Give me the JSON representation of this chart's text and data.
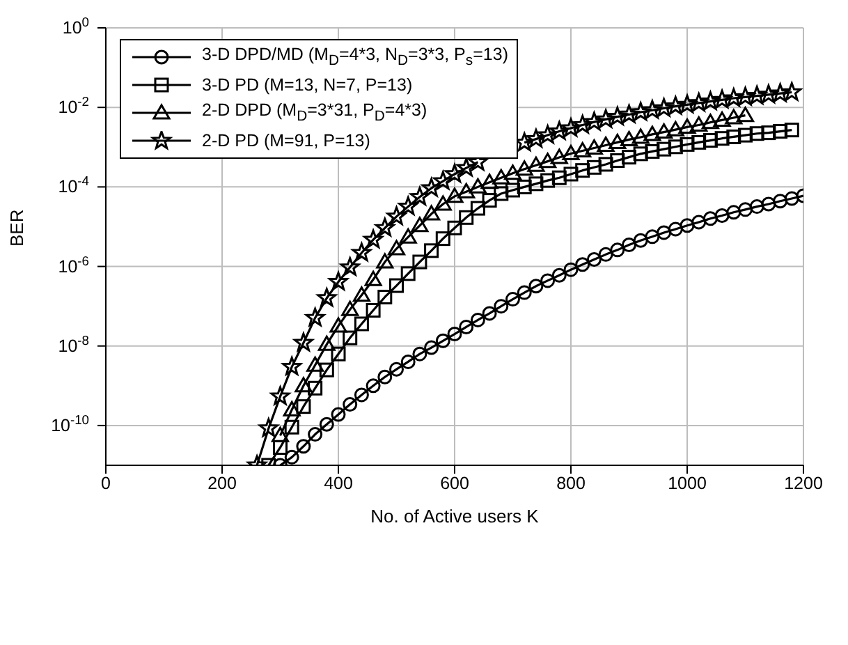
{
  "chart_data": {
    "type": "line",
    "xlabel": "No. of Active users K",
    "ylabel": "BER",
    "log": "y",
    "grid": true,
    "legend": "top left",
    "x": [
      260,
      280,
      300,
      320,
      340,
      360,
      380,
      400,
      420,
      440,
      460,
      480,
      500,
      520,
      540,
      560,
      580,
      600,
      620,
      640,
      660,
      680,
      700,
      720,
      740,
      760,
      780,
      800,
      820,
      840,
      860,
      880,
      900,
      920,
      940,
      960,
      980,
      1000,
      1020,
      1040,
      1060,
      1080,
      1100,
      1120,
      1140,
      1160,
      1180,
      1200
    ],
    "xlim": [
      0,
      1200
    ],
    "xticks": [
      0,
      200,
      400,
      600,
      800,
      1000,
      1200
    ],
    "ylim": [
      1e-11,
      1
    ],
    "yticks": [
      {
        "value": 1,
        "label": "10$^{0}$"
      },
      {
        "value": 0.01,
        "label": "10$^{-2}$"
      },
      {
        "value": 0.0001,
        "label": "10$^{-4}$"
      },
      {
        "value": 1e-06,
        "label": "10$^{-6}$"
      },
      {
        "value": 1e-08,
        "label": "10$^{-8}$"
      },
      {
        "value": 1e-10,
        "label": "10$^{-10}$"
      }
    ],
    "series": [
      {
        "name": "3-D DPD/MD (M$_{D}$=4*3, N$_{D}$=3*3, P$_{s}$=13)",
        "color": "#000000",
        "marker": "circle",
        "values": [
          null,
          null,
          1e-11,
          1.6e-11,
          3e-11,
          6e-11,
          1.07e-10,
          1.9e-10,
          3.4e-10,
          5.9e-10,
          1e-09,
          1.66e-09,
          2.6e-09,
          4e-09,
          6.3e-09,
          9.1e-09,
          1.35e-08,
          2e-08,
          3e-08,
          4.5e-08,
          6.6e-08,
          1e-07,
          1.5e-07,
          2.2e-07,
          3.2e-07,
          4.4e-07,
          6e-07,
          8.3e-07,
          1.12e-06,
          1.5e-06,
          2e-06,
          2.6e-06,
          3.5e-06,
          4.5e-06,
          5.6e-06,
          7.1e-06,
          8.7e-06,
          1.07e-05,
          1.3e-05,
          1.6e-05,
          1.9e-05,
          2.3e-05,
          2.7e-05,
          3.2e-05,
          3.7e-05,
          4.4e-05,
          5.1e-05,
          6e-05
        ]
      },
      {
        "name": "3-D PD (M=13, N=7, P=13)",
        "color": "#000000",
        "marker": "square",
        "values": [
          null,
          1e-11,
          2.8e-11,
          9.1e-11,
          3e-10,
          8.7e-10,
          2.5e-09,
          6.3e-09,
          1.6e-08,
          3.6e-08,
          7.9e-08,
          1.7e-07,
          3.3e-07,
          6.6e-07,
          1.3e-06,
          2.5e-06,
          5e-06,
          9.3e-06,
          1.7e-05,
          2.9e-05,
          4.6e-05,
          6.8e-05,
          8.3e-05,
          0.0001,
          0.00012,
          0.000145,
          0.00017,
          0.00021,
          0.00026,
          0.00031,
          0.00037,
          0.00046,
          0.00056,
          0.00068,
          0.00078,
          0.00089,
          0.00102,
          0.00117,
          0.00132,
          0.00148,
          0.00166,
          0.00182,
          0.002,
          0.0022,
          0.0023,
          0.0025,
          0.0027,
          null
        ]
      },
      {
        "name": "2-D DPD (M$_{D}$=3*31, P$_{D}$=4*3)",
        "color": "#000000",
        "marker": "triangle",
        "values": [
          null,
          null,
          5.6e-11,
          2.5e-10,
          1e-09,
          3.3e-09,
          1.1e-08,
          3.2e-08,
          8.3e-08,
          1.9e-07,
          4.7e-07,
          1.3e-06,
          2.8e-06,
          5.5e-06,
          1.07e-05,
          2.1e-05,
          3.7e-05,
          5.8e-05,
          7.6e-05,
          0.0001,
          0.00013,
          0.00017,
          0.00022,
          0.00028,
          0.00035,
          0.00044,
          0.00055,
          0.00069,
          0.00081,
          0.00095,
          0.00112,
          0.00132,
          0.00155,
          0.00178,
          0.0021,
          0.0024,
          0.00275,
          0.0032,
          0.0036,
          0.0042,
          0.0048,
          0.0055,
          0.0063,
          null,
          null,
          null,
          null,
          null
        ]
      },
      {
        "name": "2-D PD (M=91, P=13)",
        "color": "#000000",
        "marker": "star",
        "values": [
          1e-11,
          8.5e-11,
          5.4e-10,
          3e-09,
          1.2e-08,
          5.1e-08,
          1.6e-07,
          4.1e-07,
          9.5e-07,
          2.2e-06,
          4.7e-06,
          9.3e-06,
          1.8e-05,
          3.2e-05,
          5.6e-05,
          9.3e-05,
          0.00014,
          0.00021,
          0.0003,
          0.00042,
          null,
          null,
          null,
          0.0013,
          0.0016,
          0.002,
          0.0025,
          0.003,
          0.0036,
          0.0043,
          0.005,
          0.0058,
          0.0066,
          0.0076,
          0.0085,
          0.0095,
          0.0107,
          0.0117,
          0.0129,
          0.0141,
          0.0155,
          0.017,
          0.0182,
          0.0195,
          0.0209,
          0.0224,
          0.024,
          null
        ]
      }
    ]
  }
}
